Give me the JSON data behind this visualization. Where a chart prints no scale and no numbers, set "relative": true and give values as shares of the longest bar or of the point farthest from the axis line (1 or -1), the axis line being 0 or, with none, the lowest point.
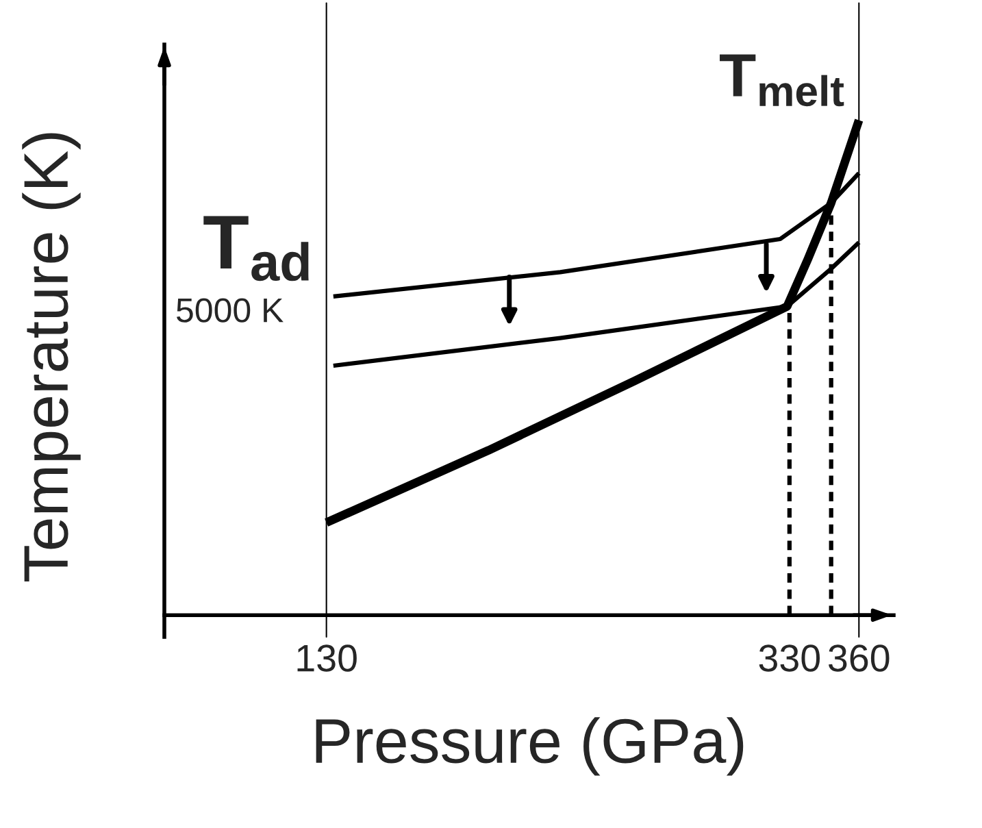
{
  "chart_data": {
    "type": "line",
    "relative": true,
    "xlabel": "Pressure (GPa)",
    "ylabel": "Temperature (K)",
    "xlim": [
      60,
      375
    ],
    "xticks": [
      130,
      330,
      360
    ],
    "series": [
      {
        "color": "#000000",
        "x": [
          133,
          231,
          326,
          348,
          360
        ],
        "values": [
          0.644,
          0.693,
          0.76,
          0.833,
          0.893
        ]
      },
      {
        "color": "#000000",
        "x": [
          133,
          231,
          329,
          348,
          360
        ],
        "values": [
          0.504,
          0.56,
          0.624,
          0.7,
          0.753
        ]
      },
      {
        "color": "#000000",
        "x": [
          130,
          200,
          263,
          329,
          338,
          348,
          360
        ],
        "values": [
          0.187,
          0.333,
          0.473,
          0.624,
          0.72,
          0.833,
          1.0
        ]
      },
      {
        "color": "#000000",
        "line_style": "dashed",
        "x": [
          330,
          330
        ],
        "values": [
          0,
          0.624
        ]
      },
      {
        "color": "#000000",
        "line_style": "dashed",
        "x": [
          348,
          348
        ],
        "values": [
          0,
          0.833
        ]
      }
    ],
    "ref_lines": [
      {
        "axis": "x",
        "value": 130,
        "color": "#000000"
      },
      {
        "axis": "x",
        "value": 360,
        "color": "#000000"
      }
    ],
    "annotations": [
      "T$_{ad}$",
      "T$_{melt}$",
      "5000 K"
    ],
    "grid": false,
    "legend": false
  }
}
